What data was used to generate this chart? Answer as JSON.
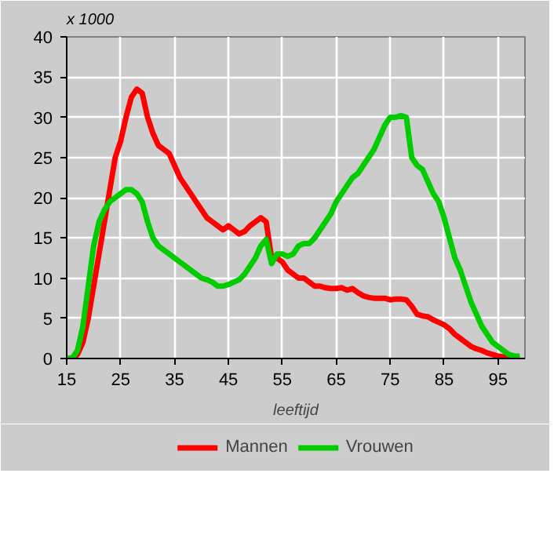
{
  "chart_data": {
    "type": "line",
    "annotations": [
      "x 1000"
    ],
    "xlabel": "leeftijd",
    "x": [
      15,
      16,
      17,
      18,
      19,
      20,
      21,
      22,
      23,
      24,
      25,
      26,
      27,
      28,
      29,
      30,
      31,
      32,
      33,
      34,
      35,
      36,
      37,
      38,
      39,
      40,
      41,
      42,
      43,
      44,
      45,
      46,
      47,
      48,
      49,
      50,
      51,
      52,
      53,
      54,
      55,
      56,
      57,
      58,
      59,
      60,
      61,
      62,
      63,
      64,
      65,
      66,
      67,
      68,
      69,
      70,
      71,
      72,
      73,
      74,
      75,
      76,
      77,
      78,
      79,
      80,
      81,
      82,
      83,
      84,
      85,
      86,
      87,
      88,
      89,
      90,
      91,
      92,
      93,
      94,
      95,
      96,
      97,
      98,
      99
    ],
    "series": [
      {
        "name": "Mannen",
        "color": "#ff0000",
        "values": [
          0,
          0,
          0.5,
          2,
          5,
          9,
          13,
          17,
          21,
          25,
          27,
          30,
          32.5,
          33.5,
          33,
          30,
          28,
          26.5,
          26,
          25.5,
          24,
          22.5,
          21.5,
          20.5,
          19.5,
          18.5,
          17.5,
          17,
          16.5,
          16,
          16.5,
          16,
          15.5,
          15.8,
          16.5,
          17,
          17.5,
          17,
          12.5,
          12.5,
          12,
          11,
          10.5,
          10,
          10,
          9.5,
          9,
          9,
          8.8,
          8.7,
          8.7,
          8.8,
          8.5,
          8.7,
          8.2,
          7.8,
          7.6,
          7.5,
          7.5,
          7.5,
          7.3,
          7.4,
          7.4,
          7.3,
          6.5,
          5.5,
          5.3,
          5.2,
          4.8,
          4.5,
          4.2,
          3.7,
          3,
          2.5,
          2,
          1.5,
          1.2,
          1,
          0.7,
          0.5,
          0.3,
          0.2,
          0.1,
          0.1,
          0
        ]
      },
      {
        "name": "Vrouwen",
        "color": "#00cc00",
        "values": [
          0,
          0,
          1,
          4,
          9,
          14,
          17,
          18.5,
          19.5,
          20,
          20.5,
          21,
          21,
          20.5,
          19.5,
          17,
          15,
          14,
          13.5,
          13,
          12.5,
          12,
          11.5,
          11,
          10.5,
          10,
          9.8,
          9.5,
          9,
          9,
          9.2,
          9.5,
          9.8,
          10.5,
          11.5,
          12.5,
          14,
          14.8,
          11.8,
          13,
          13,
          12.7,
          13,
          14,
          14.3,
          14.3,
          15,
          16,
          17,
          18,
          19.5,
          20.5,
          21.5,
          22.5,
          23,
          24,
          25,
          26,
          27.5,
          29,
          30,
          30,
          30.2,
          30,
          25,
          24,
          23.5,
          22,
          20.5,
          19.5,
          17.5,
          15,
          12.5,
          11,
          9,
          7,
          5.5,
          4,
          3,
          2,
          1.5,
          1,
          0.5,
          0.3,
          0.3
        ]
      }
    ],
    "xlim": [
      15,
      100
    ],
    "ylim": [
      0,
      40
    ],
    "xticks": [
      15,
      25,
      35,
      45,
      55,
      65,
      75,
      85,
      95
    ],
    "yticks": [
      0,
      5,
      10,
      15,
      20,
      25,
      30,
      35,
      40
    ],
    "grid": true,
    "legend": "bottom"
  }
}
